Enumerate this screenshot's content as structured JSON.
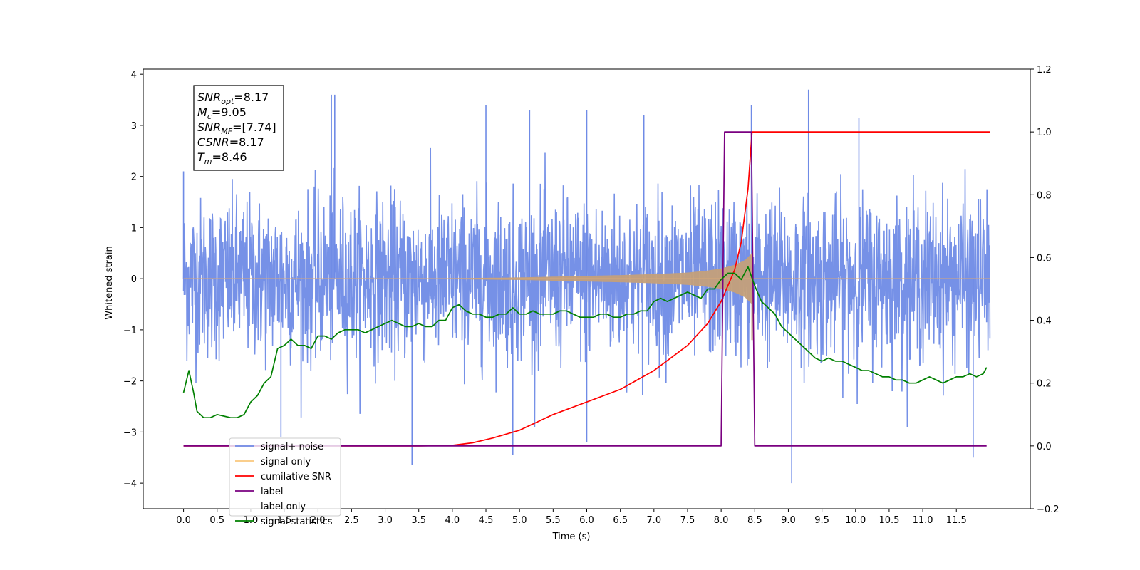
{
  "chart_data": {
    "type": "line",
    "xlabel": "Time (s)",
    "ylabel_left": "Whitened strain",
    "ylabel_right": "",
    "xlim": [
      -0.6,
      12.6
    ],
    "ylim_left": [
      -4.5,
      4.1
    ],
    "ylim_right": [
      -0.2,
      1.2
    ],
    "x_ticks": [
      0.0,
      0.5,
      1.0,
      1.5,
      2.0,
      2.5,
      3.0,
      3.5,
      4.0,
      4.5,
      5.0,
      5.5,
      6.0,
      6.5,
      7.0,
      7.5,
      8.0,
      8.5,
      9.0,
      9.5,
      10.0,
      10.5,
      11.0,
      11.5
    ],
    "x_tick_labels": [
      "0.0",
      "0.5",
      "1.0",
      "1.5",
      "2.0",
      "2.5",
      "3.0",
      "3.5",
      "4.0",
      "4.5",
      "5.0",
      "5.5",
      "6.0",
      "6.5",
      "7.0",
      "7.5",
      "8.0",
      "8.5",
      "9.0",
      "9.5",
      "10.0",
      "10.5",
      "11.0",
      "11.5"
    ],
    "y_left_ticks": [
      4,
      3,
      2,
      1,
      0,
      -1,
      -2,
      -3,
      -4
    ],
    "y_left_tick_labels": [
      "4",
      "3",
      "2",
      "1",
      "0",
      "−1",
      "−2",
      "−3",
      "−4"
    ],
    "y_right_ticks": [
      1.2,
      1.0,
      0.8,
      0.6,
      0.4,
      0.2,
      0.0,
      -0.2
    ],
    "y_right_tick_labels": [
      "1.2",
      "1.0",
      "0.8",
      "0.6",
      "0.4",
      "0.2",
      "0.0",
      "−0.2"
    ],
    "grid": false,
    "legend_position": "bottom-left",
    "annotation_box": {
      "position": "top-left",
      "lines": [
        {
          "base": "SNR",
          "sub": "opt",
          "value": "=8.17"
        },
        {
          "base": "M",
          "sub": "c",
          "value": "=9.05"
        },
        {
          "base": "SNR",
          "sub": "MF",
          "value": "=[7.74]"
        },
        {
          "base": "CSNR",
          "sub": "",
          "value": "=8.17"
        },
        {
          "base": "T",
          "sub": "m",
          "value": "=8.46"
        }
      ]
    },
    "series": [
      {
        "name": "signal+ noise",
        "axis": "left",
        "color": "#6f8be6",
        "description_values": {
          "mean": 0.0,
          "envelope_lower": -2.2,
          "envelope_upper": 2.2
        },
        "spikes": [
          [
            0.0,
            2.1
          ],
          [
            2.2,
            3.6
          ],
          [
            2.25,
            3.6
          ],
          [
            4.5,
            3.4
          ],
          [
            5.15,
            3.3
          ],
          [
            6.0,
            3.3
          ],
          [
            6.85,
            3.2
          ],
          [
            8.45,
            3.4
          ],
          [
            9.3,
            3.7
          ],
          [
            10.05,
            3.15
          ],
          [
            3.4,
            -3.65
          ],
          [
            4.9,
            -3.45
          ],
          [
            6.0,
            -3.2
          ],
          [
            9.05,
            -4.0
          ],
          [
            11.75,
            -3.5
          ],
          [
            1.45,
            -3.1
          ]
        ],
        "x_range": [
          0.0,
          12.0
        ]
      },
      {
        "name": "signal only",
        "axis": "left",
        "color": "#f9c77c",
        "envelope": [
          [
            0.0,
            0.0
          ],
          [
            3.0,
            0.005
          ],
          [
            4.0,
            0.01
          ],
          [
            5.0,
            0.025
          ],
          [
            5.5,
            0.04
          ],
          [
            6.0,
            0.055
          ],
          [
            6.5,
            0.07
          ],
          [
            7.0,
            0.09
          ],
          [
            7.5,
            0.12
          ],
          [
            7.8,
            0.16
          ],
          [
            8.0,
            0.2
          ],
          [
            8.2,
            0.27
          ],
          [
            8.35,
            0.36
          ],
          [
            8.42,
            0.45
          ],
          [
            8.46,
            0.5
          ],
          [
            8.47,
            0.0
          ],
          [
            12.0,
            0.0
          ]
        ]
      },
      {
        "name": "cumilative SNR",
        "axis": "right",
        "color": "#ff0000",
        "x": [
          0.0,
          3.5,
          4.0,
          4.3,
          4.6,
          5.0,
          5.5,
          6.0,
          6.5,
          7.0,
          7.5,
          7.8,
          8.0,
          8.2,
          8.3,
          8.4,
          8.46,
          8.5,
          12.0
        ],
        "values": [
          0.0,
          0.0,
          0.002,
          0.01,
          0.025,
          0.05,
          0.1,
          0.14,
          0.18,
          0.24,
          0.32,
          0.39,
          0.46,
          0.56,
          0.65,
          0.82,
          1.0,
          1.0,
          1.0
        ]
      },
      {
        "name": "label",
        "axis": "right",
        "color": "#7a0080",
        "x": [
          0.0,
          8.0,
          8.05,
          8.45,
          8.5,
          11.95
        ],
        "values": [
          0.0,
          0.0,
          1.0,
          1.0,
          0.0,
          0.0
        ]
      },
      {
        "name": "label only",
        "axis": "right",
        "color": "#ffffff",
        "hidden": true
      },
      {
        "name": "signal statistics",
        "axis": "right",
        "color": "#008000",
        "x": [
          0.0,
          0.08,
          0.15,
          0.2,
          0.3,
          0.4,
          0.5,
          0.6,
          0.7,
          0.8,
          0.9,
          1.0,
          1.1,
          1.2,
          1.3,
          1.4,
          1.5,
          1.6,
          1.7,
          1.8,
          1.9,
          2.0,
          2.1,
          2.2,
          2.3,
          2.4,
          2.5,
          2.6,
          2.7,
          2.8,
          2.9,
          3.0,
          3.1,
          3.2,
          3.3,
          3.4,
          3.5,
          3.6,
          3.7,
          3.8,
          3.9,
          4.0,
          4.1,
          4.2,
          4.3,
          4.4,
          4.5,
          4.6,
          4.7,
          4.8,
          4.9,
          5.0,
          5.1,
          5.2,
          5.3,
          5.4,
          5.5,
          5.6,
          5.7,
          5.8,
          5.9,
          6.0,
          6.1,
          6.2,
          6.3,
          6.4,
          6.5,
          6.6,
          6.7,
          6.8,
          6.9,
          7.0,
          7.1,
          7.2,
          7.3,
          7.4,
          7.5,
          7.6,
          7.7,
          7.8,
          7.9,
          8.0,
          8.1,
          8.2,
          8.3,
          8.4,
          8.5,
          8.6,
          8.7,
          8.8,
          8.9,
          9.0,
          9.1,
          9.2,
          9.3,
          9.4,
          9.5,
          9.6,
          9.7,
          9.8,
          9.9,
          10.0,
          10.1,
          10.2,
          10.3,
          10.4,
          10.5,
          10.6,
          10.7,
          10.8,
          10.9,
          11.0,
          11.1,
          11.2,
          11.3,
          11.4,
          11.5,
          11.6,
          11.7,
          11.8,
          11.9,
          11.95
        ],
        "values": [
          0.17,
          0.24,
          0.17,
          0.11,
          0.09,
          0.09,
          0.1,
          0.095,
          0.09,
          0.09,
          0.1,
          0.14,
          0.16,
          0.2,
          0.22,
          0.31,
          0.32,
          0.34,
          0.32,
          0.32,
          0.31,
          0.35,
          0.35,
          0.34,
          0.36,
          0.37,
          0.37,
          0.37,
          0.36,
          0.37,
          0.38,
          0.39,
          0.4,
          0.39,
          0.38,
          0.38,
          0.39,
          0.38,
          0.38,
          0.4,
          0.4,
          0.44,
          0.45,
          0.43,
          0.42,
          0.42,
          0.41,
          0.41,
          0.42,
          0.42,
          0.44,
          0.42,
          0.42,
          0.43,
          0.42,
          0.42,
          0.42,
          0.43,
          0.43,
          0.42,
          0.41,
          0.41,
          0.41,
          0.42,
          0.42,
          0.41,
          0.41,
          0.42,
          0.42,
          0.43,
          0.43,
          0.46,
          0.47,
          0.46,
          0.47,
          0.48,
          0.49,
          0.48,
          0.47,
          0.5,
          0.5,
          0.53,
          0.55,
          0.55,
          0.53,
          0.57,
          0.51,
          0.46,
          0.44,
          0.42,
          0.38,
          0.36,
          0.34,
          0.32,
          0.3,
          0.28,
          0.27,
          0.28,
          0.27,
          0.27,
          0.26,
          0.25,
          0.24,
          0.24,
          0.23,
          0.22,
          0.22,
          0.21,
          0.21,
          0.2,
          0.2,
          0.21,
          0.22,
          0.21,
          0.2,
          0.21,
          0.22,
          0.22,
          0.23,
          0.22,
          0.23,
          0.25
        ]
      }
    ]
  }
}
